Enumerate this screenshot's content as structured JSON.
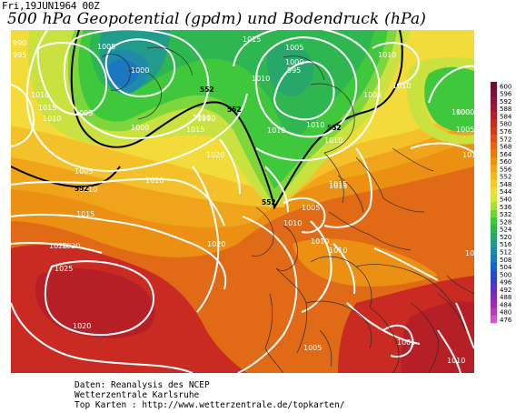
{
  "header": {
    "date": "Fri,19JUN1964 00Z",
    "title": "500 hPa Geopotential (gpdm) und Bodendruck (hPa)"
  },
  "legend": {
    "values": [
      "600",
      "596",
      "592",
      "588",
      "584",
      "580",
      "576",
      "572",
      "568",
      "564",
      "560",
      "556",
      "552",
      "548",
      "544",
      "540",
      "536",
      "532",
      "528",
      "524",
      "520",
      "516",
      "512",
      "508",
      "504",
      "500",
      "496",
      "492",
      "488",
      "484",
      "480",
      "476"
    ],
    "colors": [
      "#6a0f36",
      "#7d1035",
      "#8f1432",
      "#a3182d",
      "#b71f27",
      "#c92b22",
      "#d53a1c",
      "#de4f17",
      "#e46413",
      "#e87a11",
      "#ec9014",
      "#f0a41a",
      "#f3b922",
      "#f5cc2c",
      "#f3dc3a",
      "#d7e33f",
      "#a8dd3e",
      "#6fd43a",
      "#3fc83c",
      "#2eb650",
      "#27a86a",
      "#219c8a",
      "#1f8ba8",
      "#1c76c0",
      "#1f5fcb",
      "#2a4bcf",
      "#3b3ccb",
      "#5a32c3",
      "#7a2dba",
      "#9a2fb5",
      "#b93cb5",
      "#d456c2"
    ]
  },
  "map": {
    "pressure_labels": [
      "990",
      "995",
      "1005",
      "1000",
      "1010",
      "1015",
      "1010",
      "1005",
      "1000",
      "995",
      "1000",
      "1005",
      "1010",
      "1015",
      "1010",
      "1005",
      "1010",
      "1010",
      "1020",
      "1020",
      "1000",
      "1010",
      "1015",
      "1010",
      "1005",
      "1010",
      "1010",
      "1015",
      "1005",
      "1010",
      "1020",
      "1020",
      "1025",
      "1020",
      "1025",
      "1010",
      "1010",
      "1010",
      "1015",
      "1005",
      "1005",
      "1010",
      "1005",
      "1000",
      "1010",
      "1010",
      "1015"
    ],
    "height_labels": [
      "552",
      "552",
      "552",
      "552",
      "552"
    ]
  },
  "footer": {
    "line1": "Daten: Reanalysis des NCEP",
    "line2": "Wetterzentrale Karlsruhe",
    "line3": "Top Karten :  http://www.wetterzentrale.de/topkarten/"
  }
}
